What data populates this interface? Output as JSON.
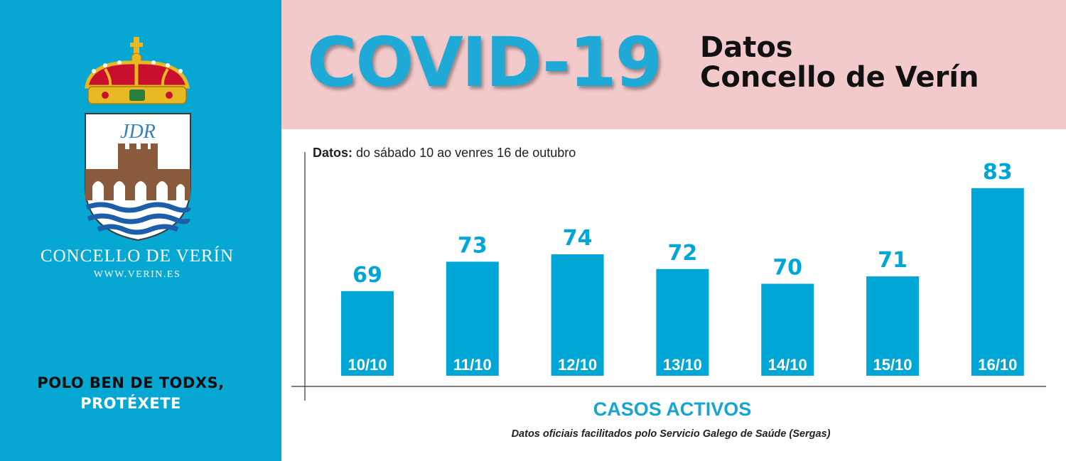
{
  "branding": {
    "council_name": "CONCELLO DE VERÍN",
    "website": "WWW.VERIN.ES",
    "slogan_line1": "POLO BEN DE TODXS,",
    "slogan_line2": "PROTÉXETE",
    "crest_monogram": "JDR"
  },
  "header": {
    "title": "COVID-19",
    "subtitle_line1": "Datos",
    "subtitle_line2": "Concello de Verín"
  },
  "chart_info": {
    "period_label": "Datos:",
    "period_text": "do sábado 10 ao venres 16 de outubro",
    "source_note": "Datos oficiais facilitados polo Servicio Galego de Saúde (Sergas)"
  },
  "colors": {
    "accent": "#07a7d3",
    "bar": "#00a6d6",
    "header_bg": "#f2cacb"
  },
  "chart_data": {
    "type": "bar",
    "title": "",
    "xlabel": "CASOS ACTIVOS",
    "ylabel": "",
    "categories": [
      "10/10",
      "11/10",
      "12/10",
      "13/10",
      "14/10",
      "15/10",
      "16/10"
    ],
    "values": [
      69,
      73,
      74,
      72,
      70,
      71,
      83
    ],
    "grid": false,
    "legend": "none"
  }
}
